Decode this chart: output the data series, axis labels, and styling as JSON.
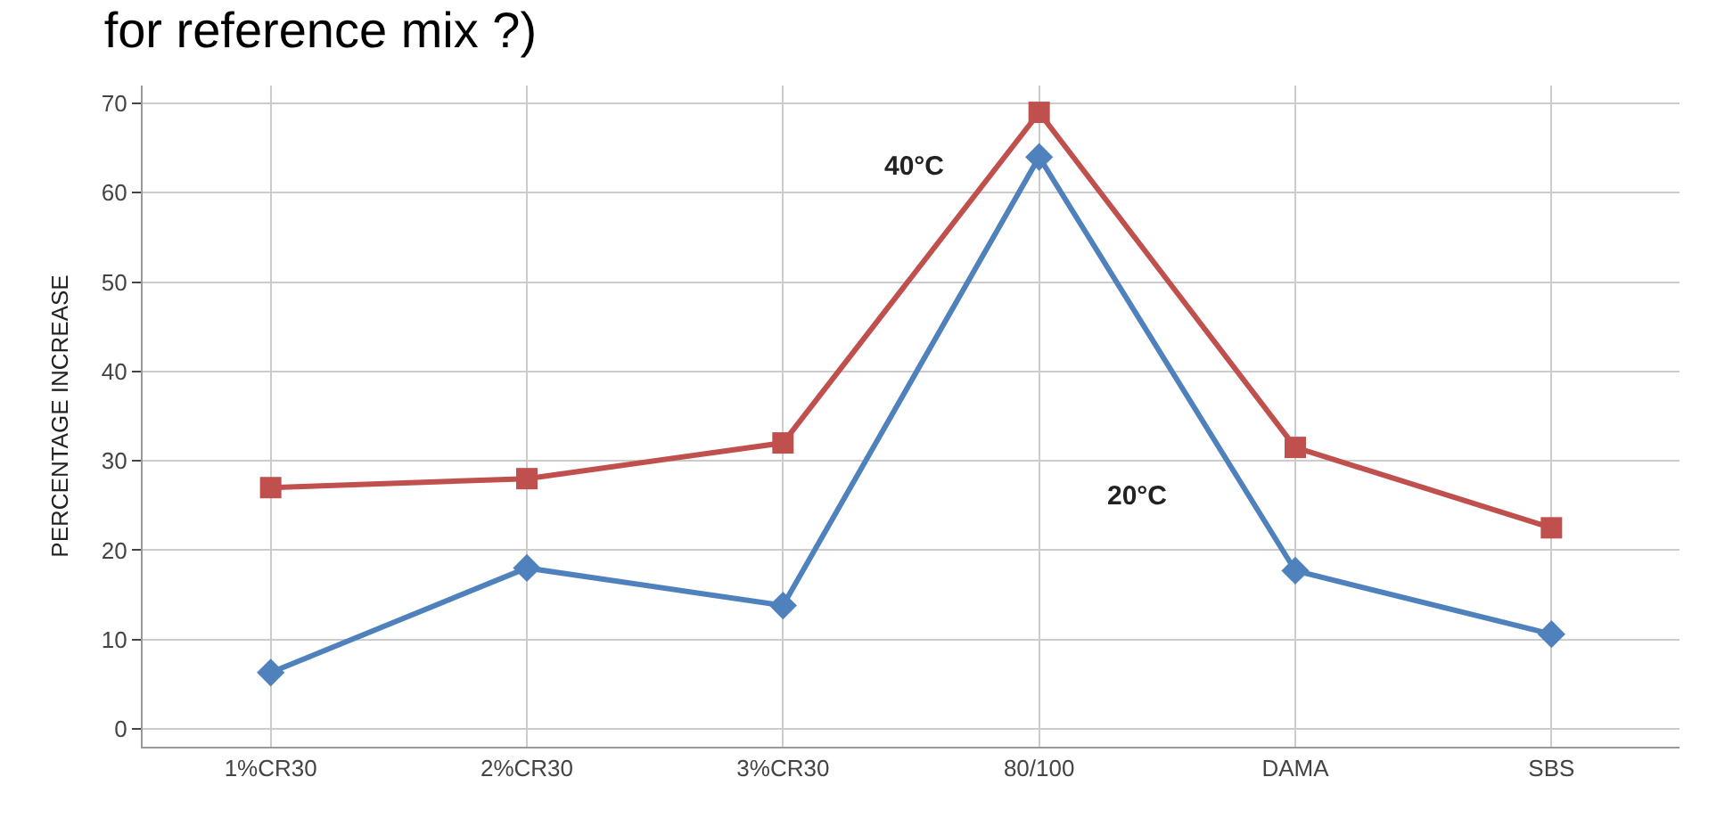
{
  "chart_data": {
    "type": "line",
    "title": "for reference mix ?)",
    "ylabel": "PERCENTAGE INCREASE",
    "categories": [
      "1%CR30",
      "2%CR30",
      "3%CR30",
      "80/100",
      "DAMA",
      "SBS"
    ],
    "series": [
      {
        "name": "40°C",
        "color": "#c0504d",
        "marker": "square",
        "values": [
          27,
          28,
          32,
          69,
          31.5,
          22.5
        ]
      },
      {
        "name": "20°C",
        "color": "#4f81bd",
        "marker": "diamond",
        "values": [
          6.3,
          18,
          13.8,
          64,
          17.7,
          10.6
        ]
      }
    ],
    "ylim": [
      -2,
      72
    ],
    "yticks": [
      0,
      10,
      20,
      30,
      40,
      50,
      60,
      70
    ],
    "grid": true,
    "legend": false
  }
}
